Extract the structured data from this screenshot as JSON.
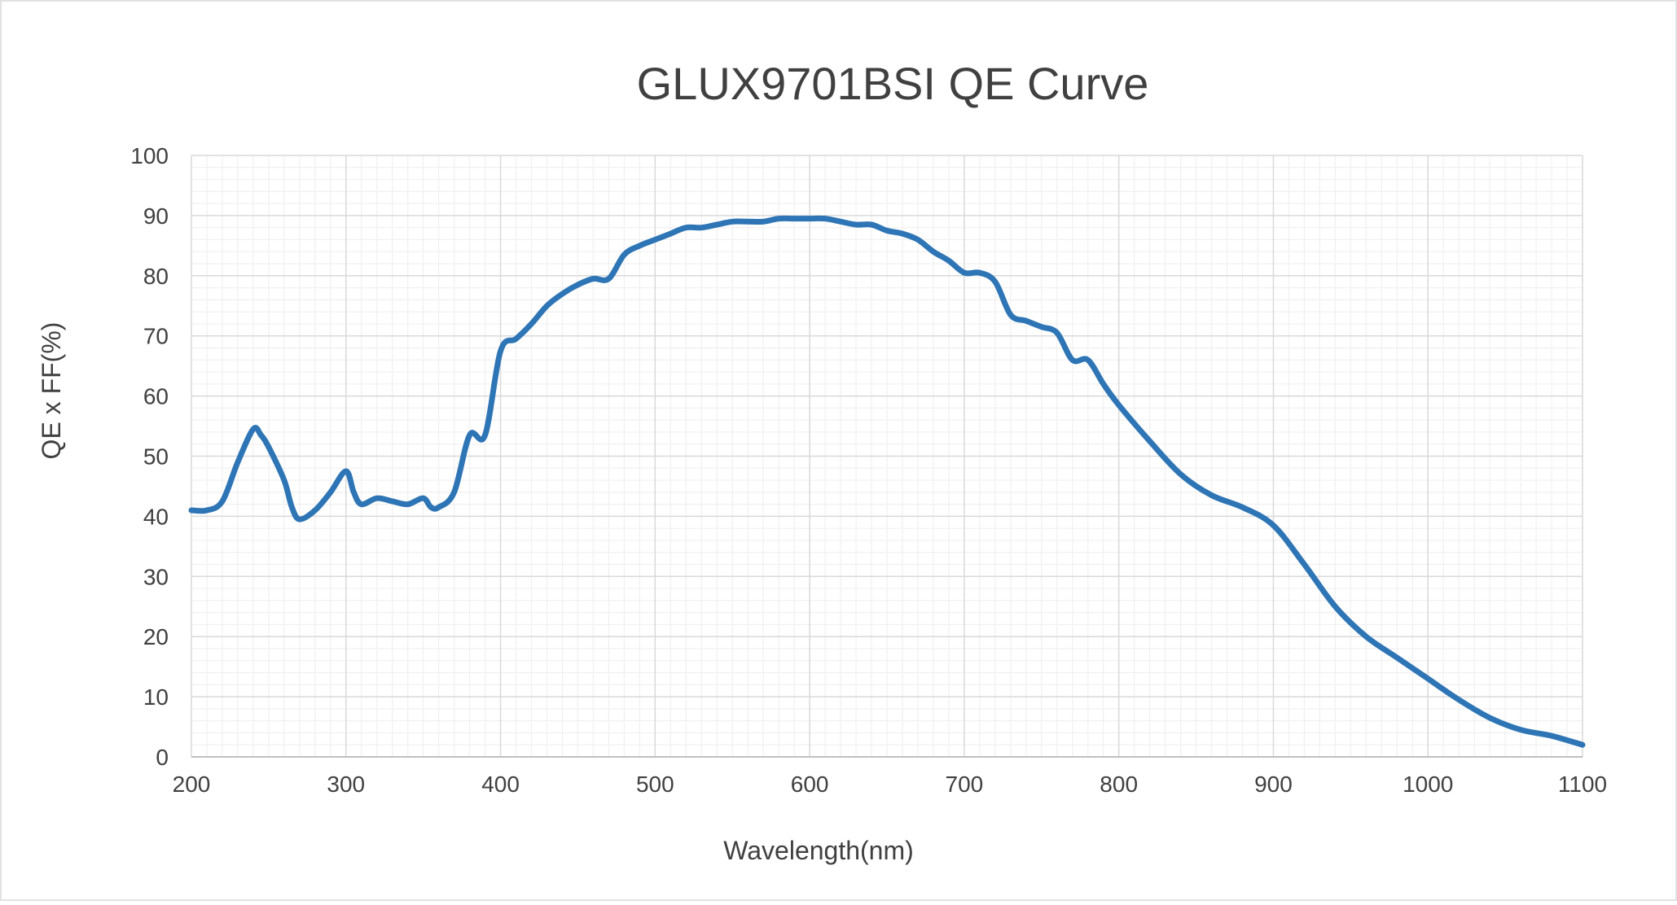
{
  "chart_data": {
    "type": "line",
    "title": "GLUX9701BSI QE  Curve",
    "xlabel": "Wavelength(nm)",
    "ylabel": "QE x FF(%)",
    "xlim": [
      200,
      1100
    ],
    "ylim": [
      0,
      100
    ],
    "x_ticks": [
      200,
      300,
      400,
      500,
      600,
      700,
      800,
      900,
      1000,
      1100
    ],
    "y_ticks": [
      0,
      10,
      20,
      30,
      40,
      50,
      60,
      70,
      80,
      90,
      100
    ],
    "grid": true,
    "legend": "none",
    "line_color": "#2E75B6",
    "series": [
      {
        "x": [
          200,
          210,
          220,
          230,
          240,
          245,
          250,
          260,
          265,
          270,
          280,
          290,
          300,
          305,
          310,
          320,
          330,
          340,
          350,
          355,
          360,
          370,
          380,
          390,
          400,
          410,
          420,
          430,
          440,
          450,
          460,
          470,
          480,
          490,
          500,
          510,
          520,
          530,
          540,
          550,
          560,
          570,
          580,
          590,
          600,
          610,
          620,
          630,
          640,
          650,
          660,
          670,
          680,
          690,
          700,
          710,
          720,
          730,
          740,
          750,
          760,
          770,
          780,
          790,
          800,
          820,
          840,
          860,
          880,
          900,
          920,
          940,
          960,
          980,
          1000,
          1020,
          1040,
          1060,
          1080,
          1100
        ],
        "values": [
          41,
          41,
          42.5,
          49,
          54.5,
          53.5,
          51.5,
          46,
          41.5,
          39.5,
          41,
          44,
          47.5,
          44,
          42,
          43,
          42.5,
          42,
          43,
          41.5,
          41.5,
          44,
          53.5,
          53.5,
          67.5,
          69.5,
          72,
          75,
          77,
          78.5,
          79.5,
          79.5,
          83.5,
          85,
          86,
          87,
          88,
          88,
          88.5,
          89,
          89,
          89,
          89.5,
          89.5,
          89.5,
          89.5,
          89,
          88.5,
          88.5,
          87.5,
          87,
          86,
          84,
          82.5,
          80.5,
          80.5,
          79,
          73.5,
          72.5,
          71.5,
          70.5,
          66,
          66,
          62,
          58.5,
          52.5,
          47,
          43.5,
          41.5,
          38.5,
          32,
          25,
          20,
          16.5,
          13,
          9.5,
          6.5,
          4.5,
          3.5,
          2
        ]
      }
    ]
  }
}
